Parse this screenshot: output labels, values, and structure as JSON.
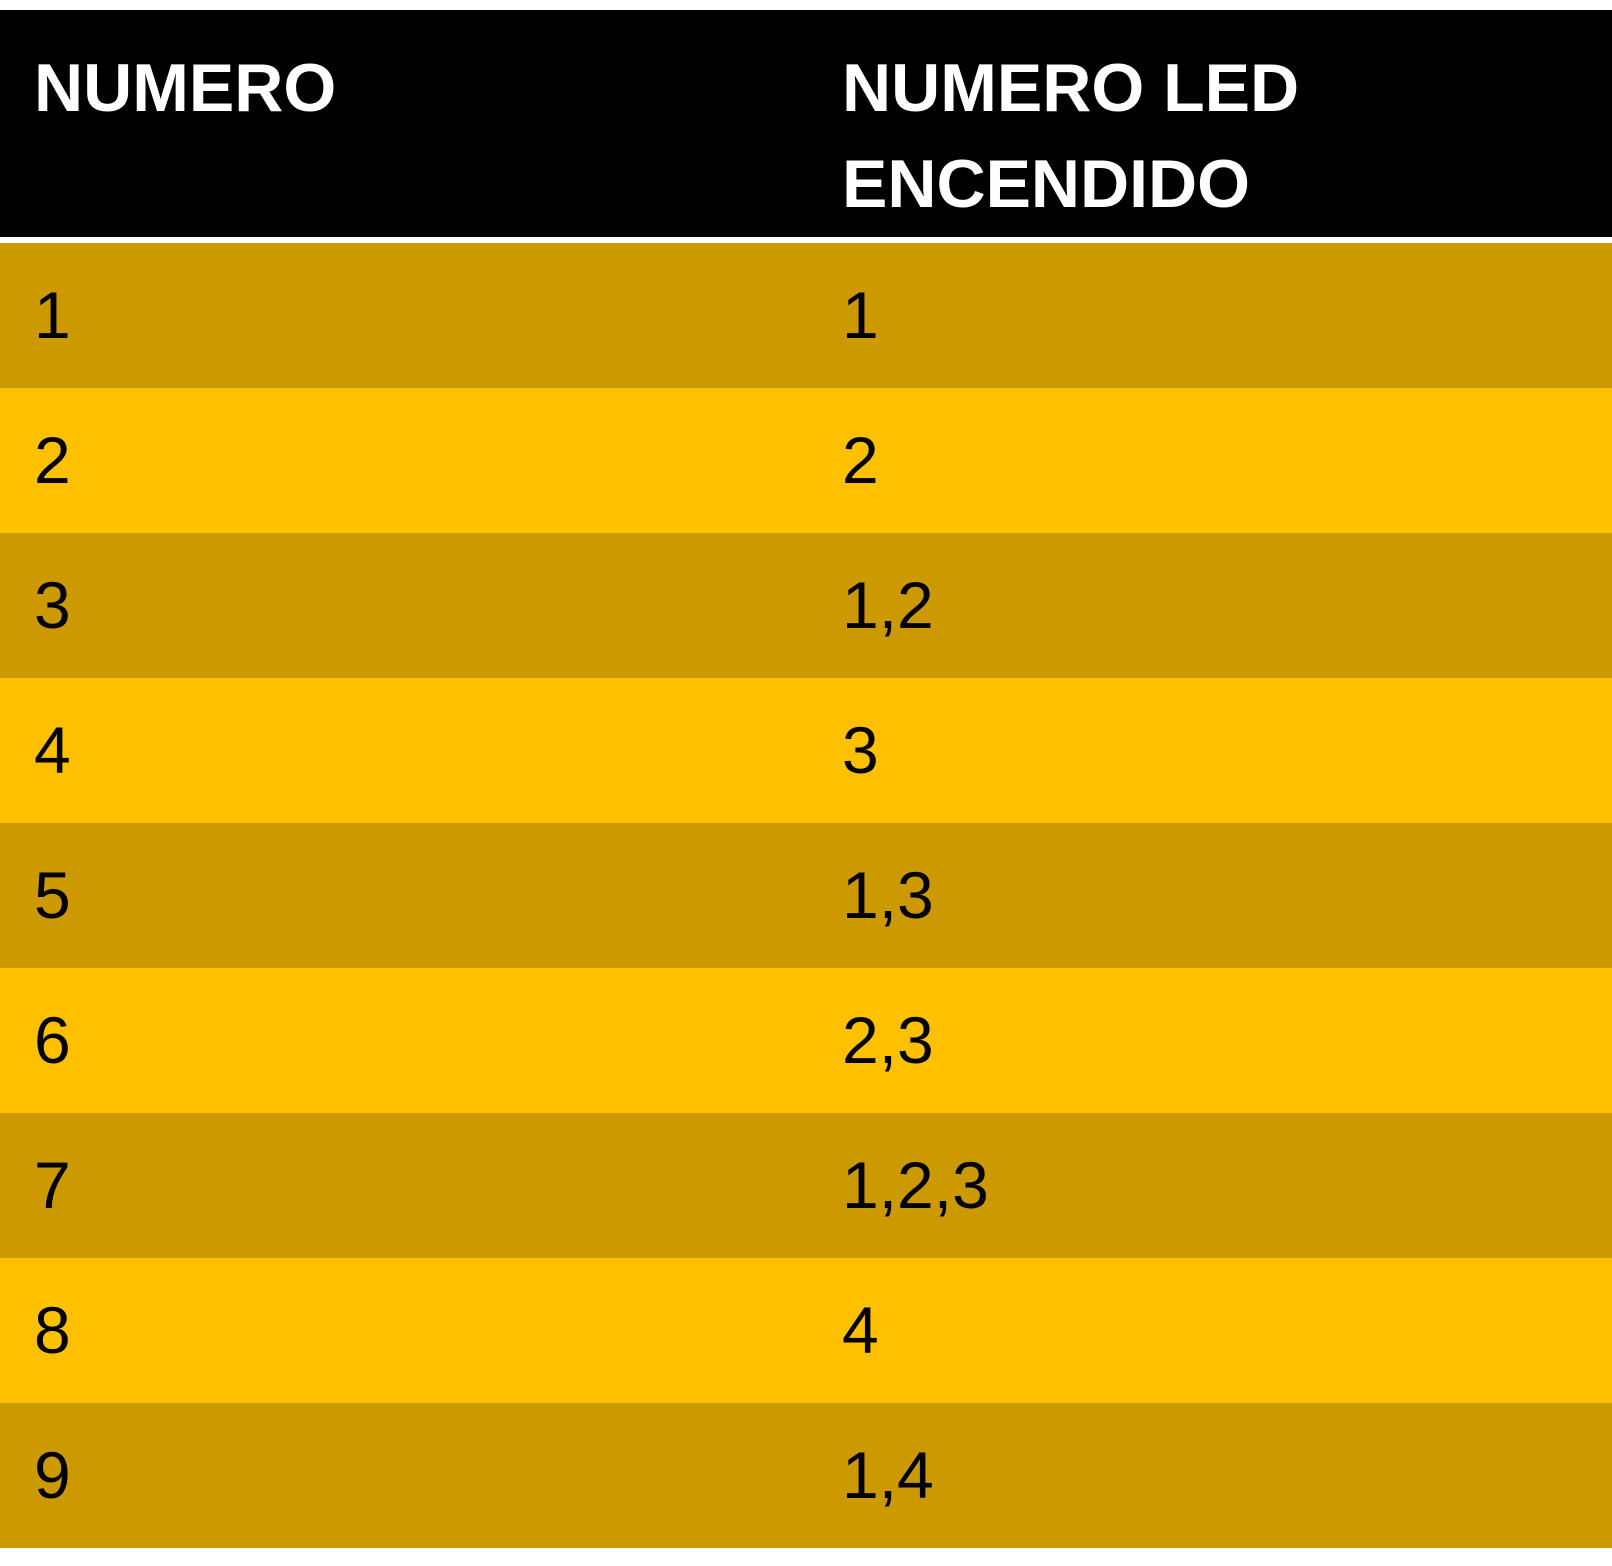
{
  "table": {
    "headers": [
      "NUMERO",
      "NUMERO LED ENCENDIDO"
    ],
    "rows": [
      [
        "1",
        "1"
      ],
      [
        "2",
        "2"
      ],
      [
        "3",
        "1,2"
      ],
      [
        "4",
        "3"
      ],
      [
        "5",
        "1,3"
      ],
      [
        "6",
        "2,3"
      ],
      [
        "7",
        "1,2,3"
      ],
      [
        "8",
        "4"
      ],
      [
        "9",
        "1,4"
      ]
    ]
  },
  "colors": {
    "header_bg": "#000000",
    "header_text": "#ffffff",
    "row_dark": "#cc9900",
    "row_light": "#ffc000"
  }
}
